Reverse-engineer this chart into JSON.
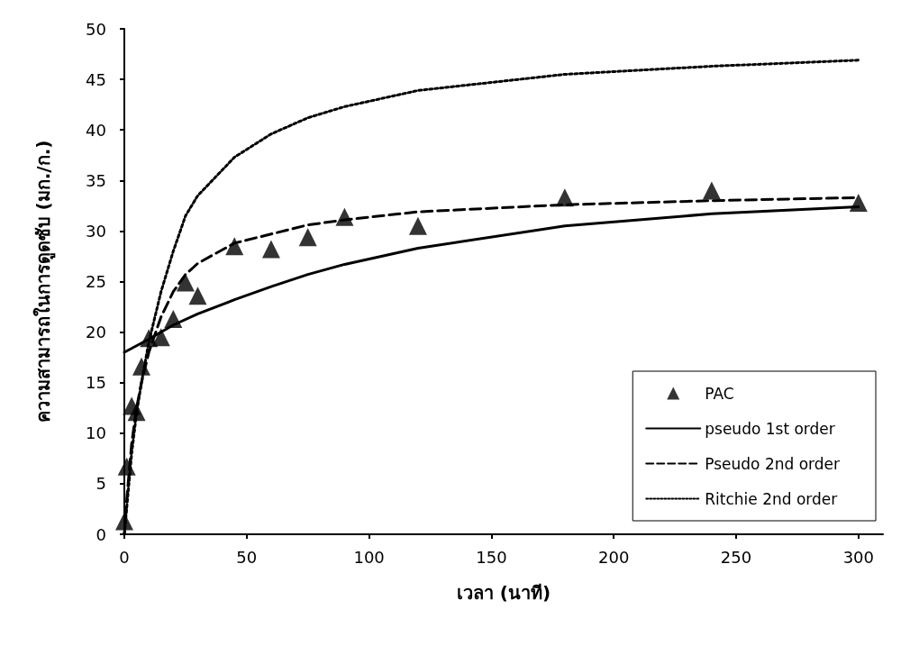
{
  "chart_data": {
    "type": "line",
    "xlabel": "เวลา (นาที)",
    "ylabel": "ความสามารถในการดูดซับ (มก./ก.)",
    "xlim": [
      0,
      310
    ],
    "ylim": [
      0,
      50
    ],
    "xticks": [
      0,
      50,
      100,
      150,
      200,
      250,
      300
    ],
    "yticks": [
      0,
      5,
      10,
      15,
      20,
      25,
      30,
      35,
      40,
      45,
      50
    ],
    "grid": false,
    "legend": "bottom right",
    "series": [
      {
        "name": "PAC",
        "type": "scatter",
        "marker": "triangle",
        "color": "#000000",
        "x": [
          0,
          1,
          3,
          5,
          7,
          10,
          15,
          20,
          25,
          30,
          45,
          60,
          75,
          90,
          120,
          180,
          240,
          300
        ],
        "values": [
          1.3,
          6.7,
          12.7,
          12.1,
          16.6,
          19.4,
          19.5,
          21.3,
          24.9,
          23.6,
          28.5,
          28.2,
          29.4,
          31.4,
          30.5,
          33.3,
          34.0,
          32.8
        ]
      },
      {
        "name": "pseudo 1st order",
        "line_style": "solid",
        "color": "#000000",
        "x": [
          0,
          10,
          20,
          30,
          45,
          60,
          75,
          90,
          120,
          180,
          240,
          300
        ],
        "values": [
          18,
          19.3,
          20.7,
          21.8,
          23.2,
          24.5,
          25.7,
          26.7,
          28.3,
          30.5,
          31.7,
          32.4
        ]
      },
      {
        "name": "Pseudo 2nd order",
        "line_style": "dashed",
        "color": "#000000",
        "x": [
          0,
          1,
          3,
          5,
          7,
          10,
          15,
          20,
          25,
          30,
          45,
          60,
          75,
          90,
          120,
          180,
          240,
          300
        ],
        "values": [
          0,
          3.5,
          9,
          12.5,
          15,
          18,
          21.5,
          24,
          25.7,
          26.8,
          28.8,
          29.7,
          30.6,
          31.1,
          31.9,
          32.6,
          33.0,
          33.3
        ]
      },
      {
        "name": "Ritchie 2nd order",
        "line_style": "dotted",
        "color": "#000000",
        "x": [
          0,
          3,
          5,
          7,
          10,
          15,
          20,
          25,
          30,
          45,
          60,
          75,
          90,
          120,
          180,
          240,
          300
        ],
        "values": [
          0,
          8,
          12,
          15,
          19,
          24,
          28,
          31.5,
          33.5,
          37.3,
          39.6,
          41.2,
          42.3,
          43.9,
          45.5,
          46.3,
          46.9
        ]
      }
    ]
  }
}
